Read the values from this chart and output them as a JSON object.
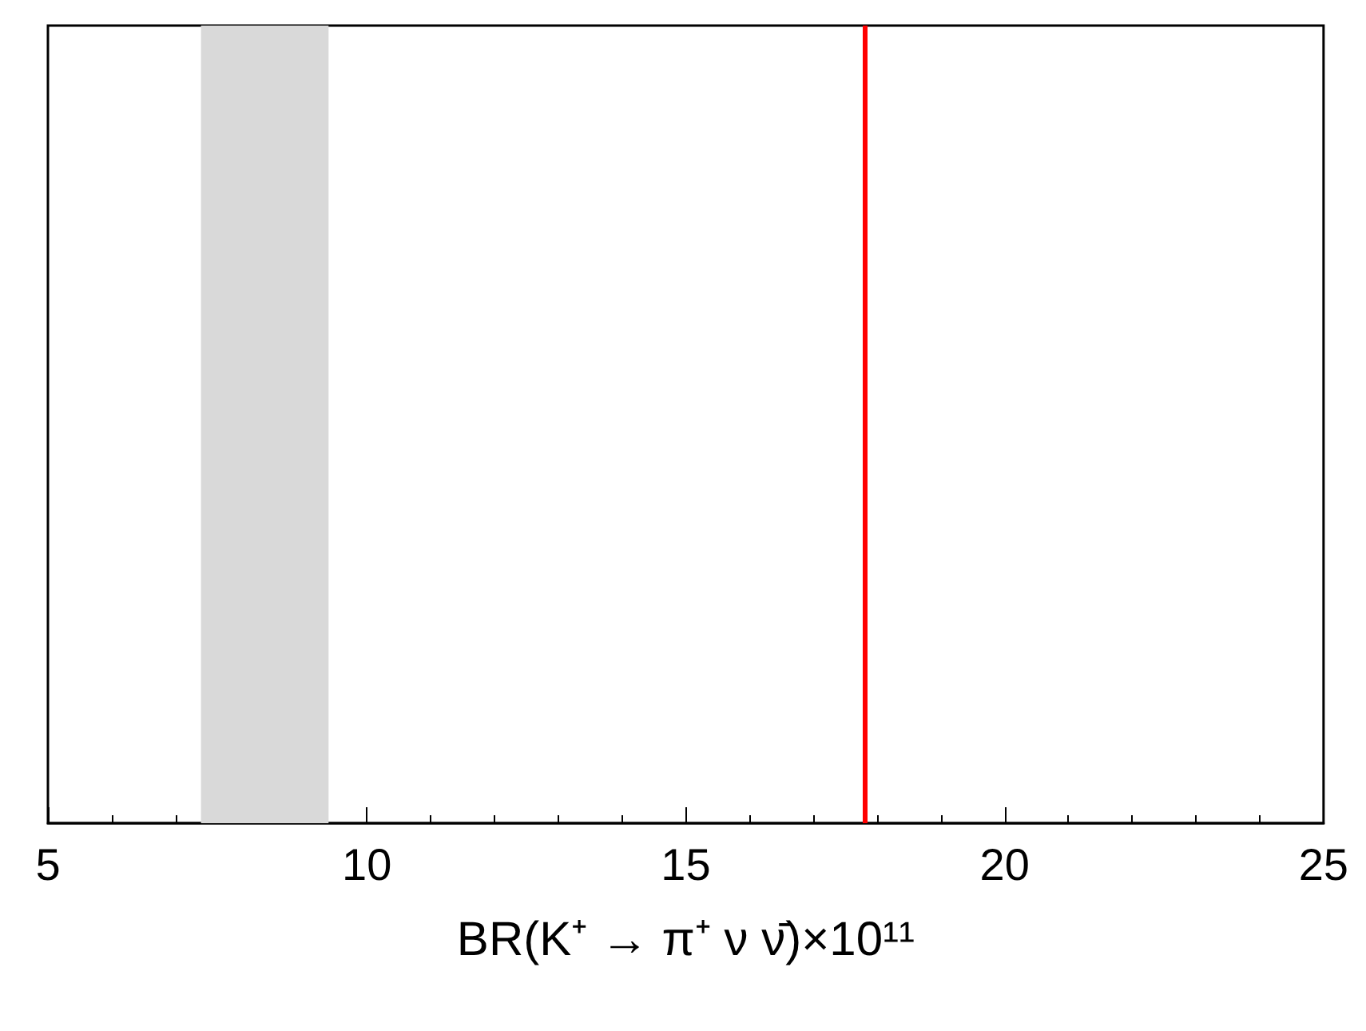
{
  "chart_data": {
    "type": "bar",
    "orientation": "horizontal",
    "xlabel": "BR(K⁺ → π⁺ ν ν̄)×10¹¹",
    "xlim": [
      5,
      25
    ],
    "xticks": [
      5,
      10,
      15,
      20,
      25
    ],
    "categories": [
      null
    ],
    "base": [
      7.4
    ],
    "values": [
      2.0
    ],
    "color": "#d9d9d9",
    "ref_lines": [
      {
        "axis": "x",
        "value": 17.8,
        "color": "#ff0000",
        "line_style": "solid"
      }
    ]
  }
}
